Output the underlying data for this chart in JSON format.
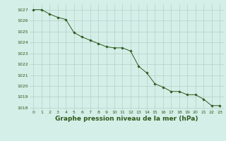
{
  "x": [
    0,
    1,
    2,
    3,
    4,
    5,
    6,
    7,
    8,
    9,
    10,
    11,
    12,
    13,
    14,
    15,
    16,
    17,
    18,
    19,
    20,
    21,
    22,
    23
  ],
  "y": [
    1027.0,
    1027.0,
    1026.6,
    1026.3,
    1026.1,
    1024.9,
    1024.5,
    1024.2,
    1023.9,
    1023.6,
    1023.5,
    1023.5,
    1023.2,
    1021.8,
    1021.2,
    1020.2,
    1019.9,
    1019.5,
    1019.5,
    1019.2,
    1019.2,
    1018.8,
    1018.2,
    1018.2
  ],
  "line_color": "#2d5a1b",
  "marker": "D",
  "marker_size": 1.8,
  "background_color": "#d4eee8",
  "grid_color": "#b0c8c0",
  "xlabel": "Graphe pression niveau de la mer (hPa)",
  "xlabel_color": "#2d5a1b",
  "tick_color": "#2d5a1b",
  "ylim": [
    1017.8,
    1027.5
  ],
  "xlim": [
    -0.5,
    23.5
  ],
  "yticks": [
    1018,
    1019,
    1020,
    1021,
    1022,
    1023,
    1024,
    1025,
    1026,
    1027
  ],
  "xticks": [
    0,
    1,
    2,
    3,
    4,
    5,
    6,
    7,
    8,
    9,
    10,
    11,
    12,
    13,
    14,
    15,
    16,
    17,
    18,
    19,
    20,
    21,
    22,
    23
  ],
  "tick_fontsize": 4.5,
  "xlabel_fontsize": 6.5,
  "xlabel_bold": true,
  "linewidth": 0.7
}
